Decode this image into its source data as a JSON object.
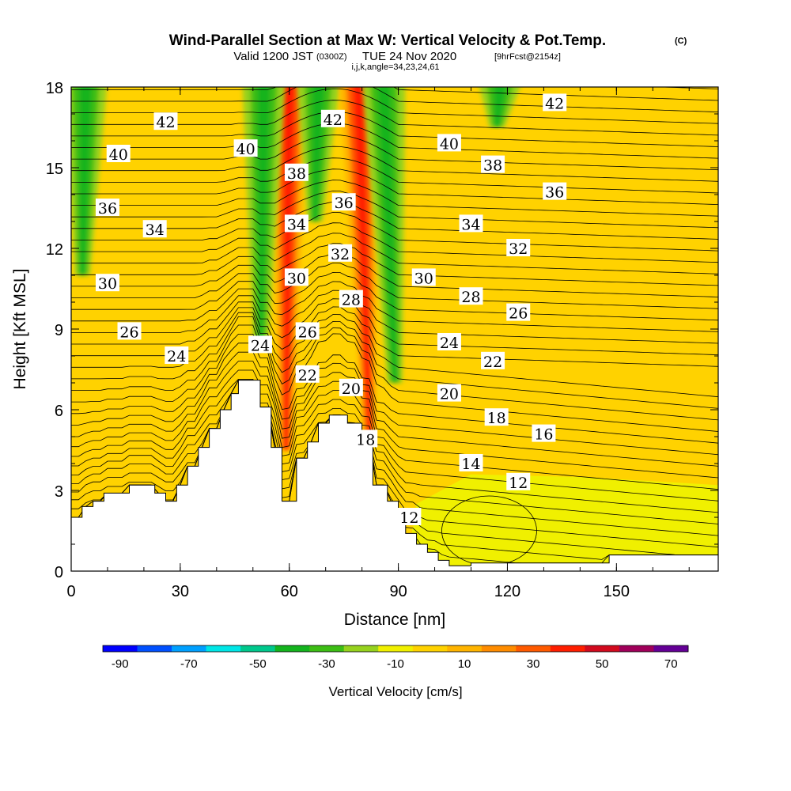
{
  "title": {
    "main": "Wind-Parallel Section at Max W: Vertical Velocity & Pot.Temp.",
    "copyright": "(C)",
    "valid_pre": "Valid 1200 JST",
    "valid_utc": "(0300Z)",
    "valid_date": "TUE 24 Nov 2020",
    "valid_fcst": "[9hrFcst@2154z]",
    "indices": "i,j,k,angle=34,23,24,61"
  },
  "colorbar": {
    "label": "Vertical Velocity [cm/s]",
    "ticks": [
      "-90",
      "-70",
      "-50",
      "-30",
      "-10",
      "10",
      "30",
      "50",
      "70"
    ],
    "colors": [
      "#0000ff",
      "#0050ff",
      "#00a0ff",
      "#00e6e6",
      "#00c88c",
      "#14b41e",
      "#3cbe14",
      "#96d21e",
      "#f0f000",
      "#ffd200",
      "#ffb400",
      "#ff8c00",
      "#ff5a00",
      "#ff1e00",
      "#d20a1e",
      "#a0005a",
      "#640096"
    ]
  },
  "chart_data": {
    "type": "heatmap",
    "title": "Wind-Parallel Section at Max W: Vertical Velocity & Pot.Temp.",
    "xlabel": "Distance [nm]",
    "ylabel": "Height [Kft MSL]",
    "xlim": [
      0,
      178
    ],
    "ylim": [
      0,
      18
    ],
    "xticks": [
      "0",
      "30",
      "60",
      "90",
      "120",
      "150"
    ],
    "yticks": [
      "0",
      "3",
      "6",
      "9",
      "12",
      "15",
      "18"
    ],
    "series": [
      {
        "name": "Vertical Velocity [cm/s]",
        "kind": "filled_contour",
        "levels": [
          -90,
          -70,
          -50,
          -30,
          -10,
          10,
          30,
          50,
          70
        ]
      },
      {
        "name": "Potential Temperature",
        "kind": "line_contour"
      }
    ],
    "vv_features": [
      {
        "sign": "up",
        "x_center": 60,
        "y_bottom": 4.5,
        "y_top": 18,
        "max": 50
      },
      {
        "sign": "down",
        "x_center": 53,
        "y_bottom": 8.5,
        "y_top": 18,
        "min": -30
      },
      {
        "sign": "down",
        "x_center": 68,
        "y_bottom": 13,
        "y_top": 18,
        "min": -30
      },
      {
        "sign": "up",
        "x_center": 79,
        "y_bottom": 5,
        "y_top": 18,
        "max": 50
      },
      {
        "sign": "down",
        "x_center": 86,
        "y_bottom": 7,
        "y_top": 18,
        "min": -30
      },
      {
        "sign": "down",
        "x_center": 4,
        "y_bottom": 11,
        "y_top": 18,
        "min": -30
      },
      {
        "sign": "down",
        "x_center": 118,
        "y_bottom": 16.5,
        "y_top": 18,
        "min": -30
      }
    ],
    "terrain": [
      [
        0,
        2.0
      ],
      [
        3,
        2.0
      ],
      [
        3,
        2.4
      ],
      [
        6,
        2.4
      ],
      [
        6,
        2.6
      ],
      [
        9,
        2.6
      ],
      [
        9,
        2.9
      ],
      [
        16,
        2.9
      ],
      [
        16,
        3.2
      ],
      [
        23,
        3.2
      ],
      [
        23,
        2.9
      ],
      [
        26,
        2.9
      ],
      [
        26,
        2.6
      ],
      [
        29,
        2.6
      ],
      [
        29,
        3.2
      ],
      [
        32,
        3.2
      ],
      [
        32,
        3.9
      ],
      [
        35,
        3.9
      ],
      [
        35,
        4.6
      ],
      [
        38,
        4.6
      ],
      [
        38,
        5.3
      ],
      [
        41,
        5.3
      ],
      [
        41,
        6.0
      ],
      [
        44,
        6.0
      ],
      [
        44,
        6.6
      ],
      [
        46,
        6.6
      ],
      [
        46,
        7.1
      ],
      [
        52,
        7.1
      ],
      [
        52,
        6.1
      ],
      [
        55,
        6.1
      ],
      [
        55,
        4.6
      ],
      [
        58,
        4.6
      ],
      [
        58,
        2.6
      ],
      [
        62,
        2.6
      ],
      [
        62,
        4.2
      ],
      [
        65,
        4.2
      ],
      [
        65,
        4.8
      ],
      [
        68,
        4.8
      ],
      [
        68,
        5.5
      ],
      [
        71,
        5.5
      ],
      [
        71,
        5.8
      ],
      [
        76,
        5.8
      ],
      [
        76,
        5.5
      ],
      [
        80,
        5.5
      ],
      [
        80,
        4.8
      ],
      [
        83,
        4.8
      ],
      [
        83,
        3.2
      ],
      [
        87,
        3.2
      ],
      [
        87,
        2.6
      ],
      [
        90,
        2.6
      ],
      [
        90,
        2.0
      ],
      [
        92,
        2.0
      ],
      [
        92,
        1.4
      ],
      [
        95,
        1.4
      ],
      [
        95,
        1.0
      ],
      [
        98,
        1.0
      ],
      [
        98,
        0.7
      ],
      [
        101,
        0.7
      ],
      [
        101,
        0.4
      ],
      [
        104,
        0.4
      ],
      [
        104,
        0.2
      ],
      [
        110,
        0.2
      ],
      [
        110,
        0.3
      ],
      [
        148,
        0.3
      ],
      [
        148,
        0.6
      ],
      [
        178,
        0.6
      ]
    ],
    "theta_labels": [
      {
        "text": "42",
        "x": 26,
        "y": 16.7
      },
      {
        "text": "40",
        "x": 13,
        "y": 15.5
      },
      {
        "text": "36",
        "x": 10,
        "y": 13.5
      },
      {
        "text": "34",
        "x": 23,
        "y": 12.7
      },
      {
        "text": "30",
        "x": 10,
        "y": 10.7
      },
      {
        "text": "26",
        "x": 16,
        "y": 8.9
      },
      {
        "text": "24",
        "x": 29,
        "y": 8.0
      },
      {
        "text": "40",
        "x": 48,
        "y": 15.7
      },
      {
        "text": "38",
        "x": 62,
        "y": 14.8
      },
      {
        "text": "34",
        "x": 62,
        "y": 12.9
      },
      {
        "text": "30",
        "x": 62,
        "y": 10.9
      },
      {
        "text": "26",
        "x": 65,
        "y": 8.9
      },
      {
        "text": "24",
        "x": 52,
        "y": 8.4
      },
      {
        "text": "22",
        "x": 65,
        "y": 7.3
      },
      {
        "text": "42",
        "x": 72,
        "y": 16.8
      },
      {
        "text": "36",
        "x": 75,
        "y": 13.7
      },
      {
        "text": "32",
        "x": 74,
        "y": 11.8
      },
      {
        "text": "28",
        "x": 77,
        "y": 10.1
      },
      {
        "text": "20",
        "x": 77,
        "y": 6.8
      },
      {
        "text": "18",
        "x": 81,
        "y": 4.9
      },
      {
        "text": "12",
        "x": 93,
        "y": 2.0
      },
      {
        "text": "40",
        "x": 104,
        "y": 15.9
      },
      {
        "text": "38",
        "x": 116,
        "y": 15.1
      },
      {
        "text": "36",
        "x": 133,
        "y": 14.1
      },
      {
        "text": "34",
        "x": 110,
        "y": 12.9
      },
      {
        "text": "32",
        "x": 123,
        "y": 12.0
      },
      {
        "text": "30",
        "x": 97,
        "y": 10.9
      },
      {
        "text": "28",
        "x": 110,
        "y": 10.2
      },
      {
        "text": "26",
        "x": 123,
        "y": 9.6
      },
      {
        "text": "24",
        "x": 104,
        "y": 8.5
      },
      {
        "text": "22",
        "x": 116,
        "y": 7.8
      },
      {
        "text": "20",
        "x": 104,
        "y": 6.6
      },
      {
        "text": "18",
        "x": 117,
        "y": 5.7
      },
      {
        "text": "16",
        "x": 130,
        "y": 5.1
      },
      {
        "text": "14",
        "x": 110,
        "y": 4.0
      },
      {
        "text": "12",
        "x": 123,
        "y": 3.3
      },
      {
        "text": "42",
        "x": 133,
        "y": 17.4
      }
    ]
  }
}
